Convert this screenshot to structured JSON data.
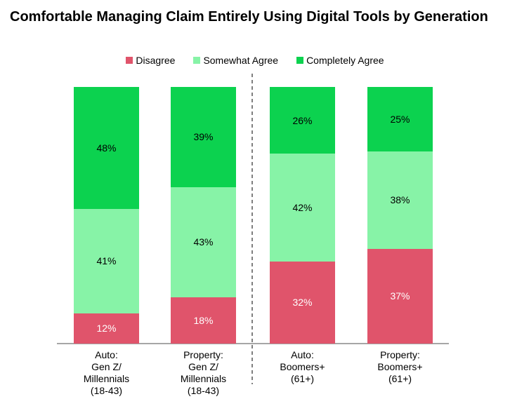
{
  "title": "Comfortable Managing Claim Entirely Using Digital Tools by Generation",
  "chart_data": {
    "type": "bar",
    "stacked": true,
    "title": "Comfortable Managing Claim Entirely Using Digital Tools by Generation",
    "categories": [
      "Auto:\nGen Z/\nMillennials\n(18-43)",
      "Property:\nGen Z/\nMillennials\n(18-43)",
      "Auto:\nBoomers+\n(61+)",
      "Property:\nBoomers+\n(61+)"
    ],
    "series": [
      {
        "name": "Disagree",
        "values": [
          12,
          18,
          32,
          37
        ],
        "color": "#e0546b",
        "label_color": "#ffffff"
      },
      {
        "name": "Somewhat Agree",
        "values": [
          41,
          43,
          42,
          38
        ],
        "color": "#87f3a7",
        "label_color": "#000000"
      },
      {
        "name": "Completely Agree",
        "values": [
          48,
          39,
          26,
          25
        ],
        "color": "#0cd24f",
        "label_color": "#000000"
      }
    ],
    "value_suffix": "%",
    "legend_position": "top",
    "grid": false,
    "y_axis_visible": false,
    "stack_total": 100,
    "divider_after_category_index": 1,
    "axis_color": "#a6a6a6",
    "divider_color": "#7f7f7f"
  }
}
